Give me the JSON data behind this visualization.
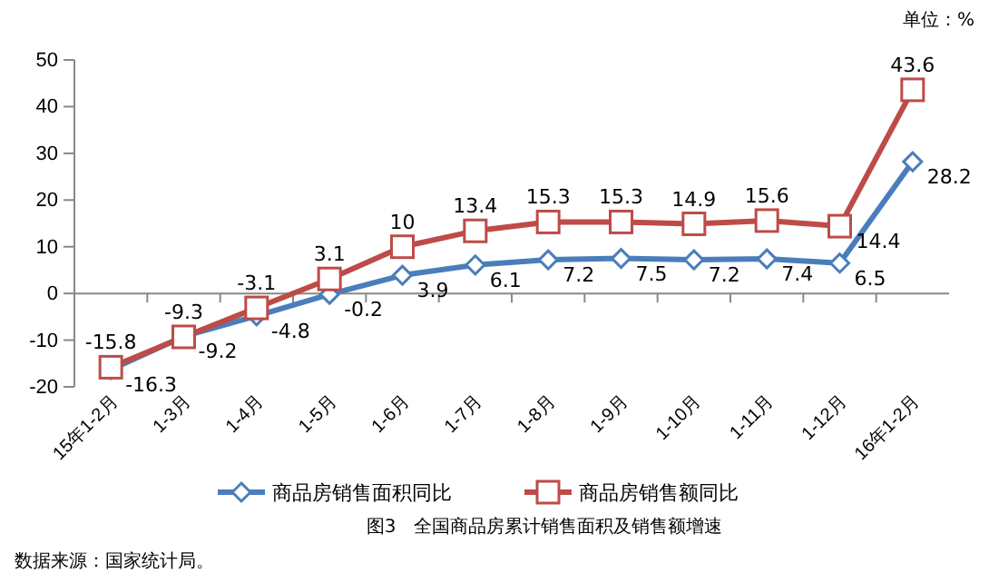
{
  "chart_data": {
    "type": "line",
    "title": "图3　全国商品房累计销售面积及销售额增速",
    "categories": [
      "15年1-2月",
      "1-3月",
      "1-4月",
      "1-5月",
      "1-6月",
      "1-7月",
      "1-8月",
      "1-9月",
      "1-10月",
      "1-11月",
      "1-12月",
      "16年1-2月"
    ],
    "series": [
      {
        "name": "商品房销售面积同比",
        "color": "#4a7ebb",
        "marker": "diamond",
        "values": [
          -16.3,
          -9.2,
          -4.8,
          -0.2,
          3.9,
          6.1,
          7.2,
          7.5,
          7.2,
          7.4,
          6.5,
          28.2
        ]
      },
      {
        "name": "商品房销售额同比",
        "color": "#be4b48",
        "marker": "square",
        "values": [
          -15.8,
          -9.3,
          -3.1,
          3.1,
          10,
          13.4,
          15.3,
          15.3,
          14.9,
          15.6,
          14.4,
          43.6
        ]
      }
    ],
    "ylim": [
      -20,
      50
    ],
    "yticks": [
      -20,
      -10,
      0,
      10,
      20,
      30,
      40,
      50
    ],
    "legend": "bottom",
    "data_labels": true,
    "line_style": "solid",
    "annotations": [
      "单位：%",
      "数据来源：国家统计局。"
    ]
  }
}
